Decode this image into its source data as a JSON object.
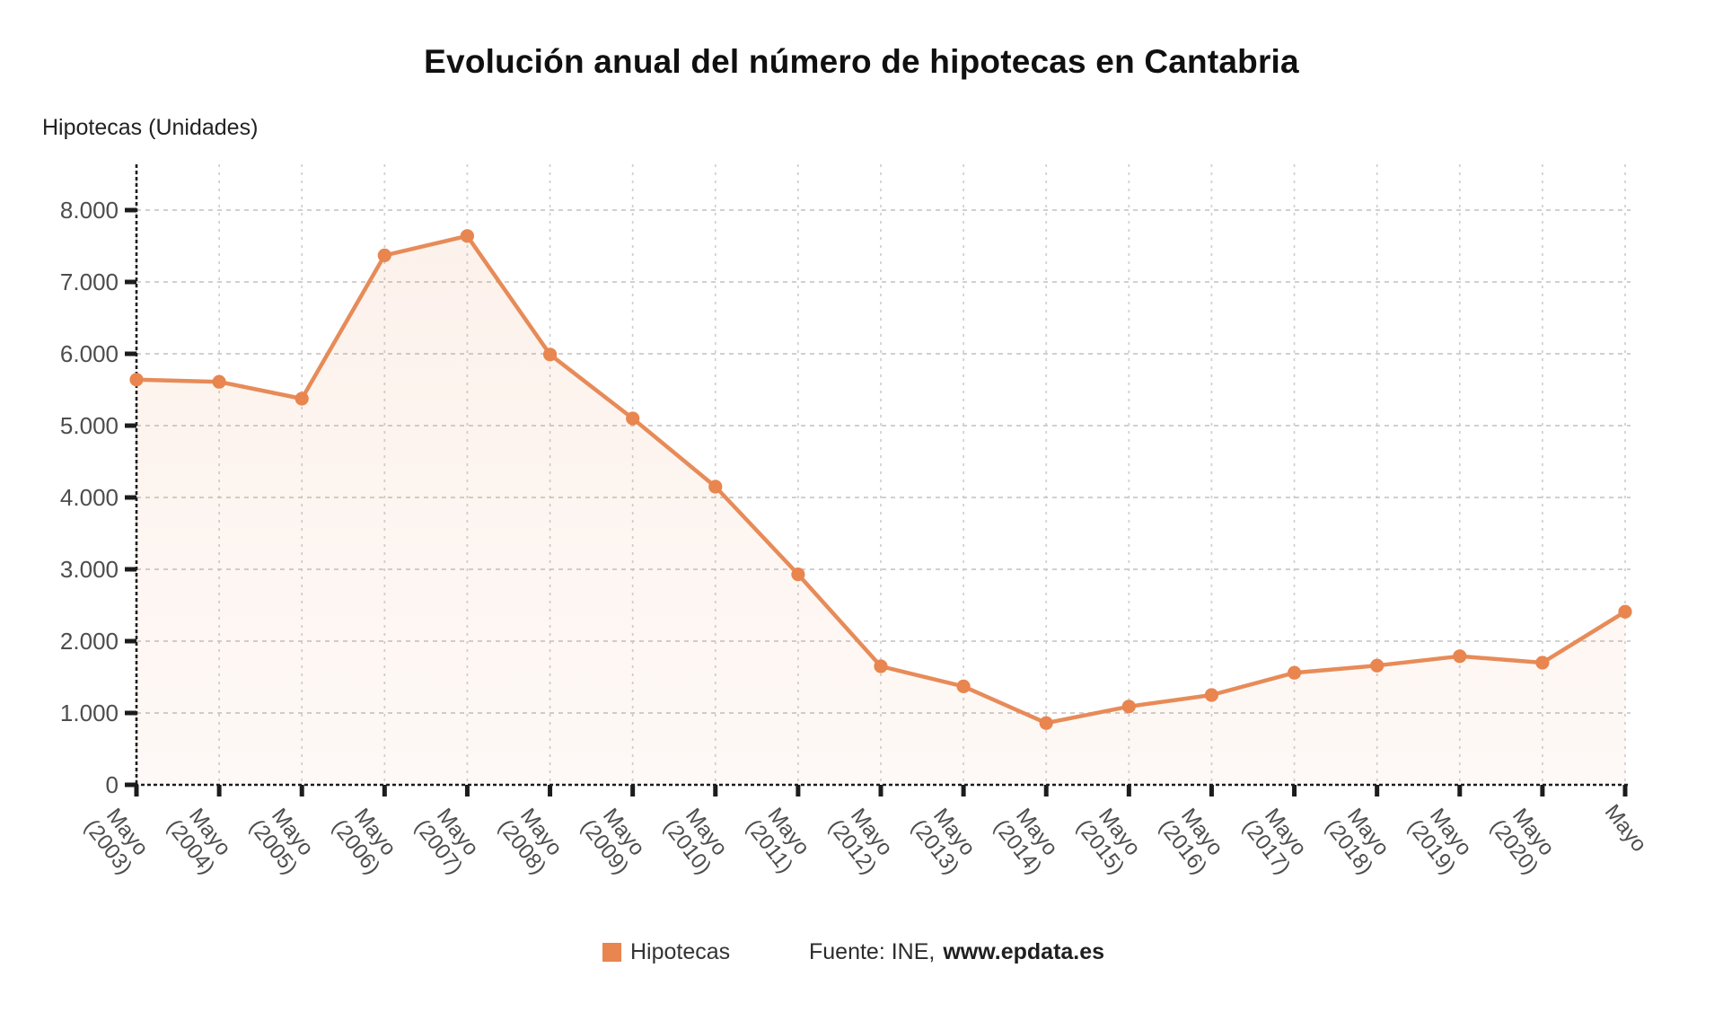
{
  "header": {
    "title": "Evolución anual del número de hipotecas en Cantabria"
  },
  "legend": {
    "label": "Hipotecas"
  },
  "footer": {
    "source_prefix": "Fuente: INE,",
    "source_site": "www.epdata.es"
  },
  "chart_data": {
    "type": "area",
    "title": "Evolución anual del número de hipotecas en Cantabria",
    "xlabel": "",
    "ylabel": "Hipotecas (Unidades)",
    "legend_position": "bottom",
    "grid": true,
    "ylim": [
      0,
      8640
    ],
    "y_ticks": {
      "values": [
        0,
        1000,
        2000,
        3000,
        4000,
        5000,
        6000,
        7000,
        8000
      ],
      "labels": [
        "0",
        "1.000",
        "2.000",
        "3.000",
        "4.000",
        "5.000",
        "6.000",
        "7.000",
        "8.000"
      ]
    },
    "categories": [
      [
        "Mayo",
        "(2003)"
      ],
      [
        "Mayo",
        "(2004)"
      ],
      [
        "Mayo",
        "(2005)"
      ],
      [
        "Mayo",
        "(2006)"
      ],
      [
        "Mayo",
        "(2007)"
      ],
      [
        "Mayo",
        "(2008)"
      ],
      [
        "Mayo",
        "(2009)"
      ],
      [
        "Mayo",
        "(2010)"
      ],
      [
        "Mayo",
        "(2011)"
      ],
      [
        "Mayo",
        "(2012)"
      ],
      [
        "Mayo",
        "(2013)"
      ],
      [
        "Mayo",
        "(2014)"
      ],
      [
        "Mayo",
        "(2015)"
      ],
      [
        "Mayo",
        "(2016)"
      ],
      [
        "Mayo",
        "(2017)"
      ],
      [
        "Mayo",
        "(2018)"
      ],
      [
        "Mayo",
        "(2019)"
      ],
      [
        "Mayo",
        "(2020)"
      ],
      [
        "Mayo"
      ]
    ],
    "series": [
      {
        "name": "Hipotecas",
        "values": [
          5640,
          5610,
          5375,
          7370,
          7640,
          5990,
          5100,
          4150,
          2930,
          1650,
          1370,
          860,
          1090,
          1250,
          1560,
          1660,
          1790,
          1700,
          2410
        ]
      }
    ],
    "colors": {
      "accent": "#e9854e",
      "line": "#e78b58",
      "area_top": "rgba(233,133,78,0.11)",
      "area_bottom": "rgba(233,133,78,0.05)",
      "h_grid": "#c9c9c9",
      "v_grid": "#cfcfcf",
      "axis": "#1c1c1c",
      "tick_text": "#4d4d4d"
    }
  }
}
